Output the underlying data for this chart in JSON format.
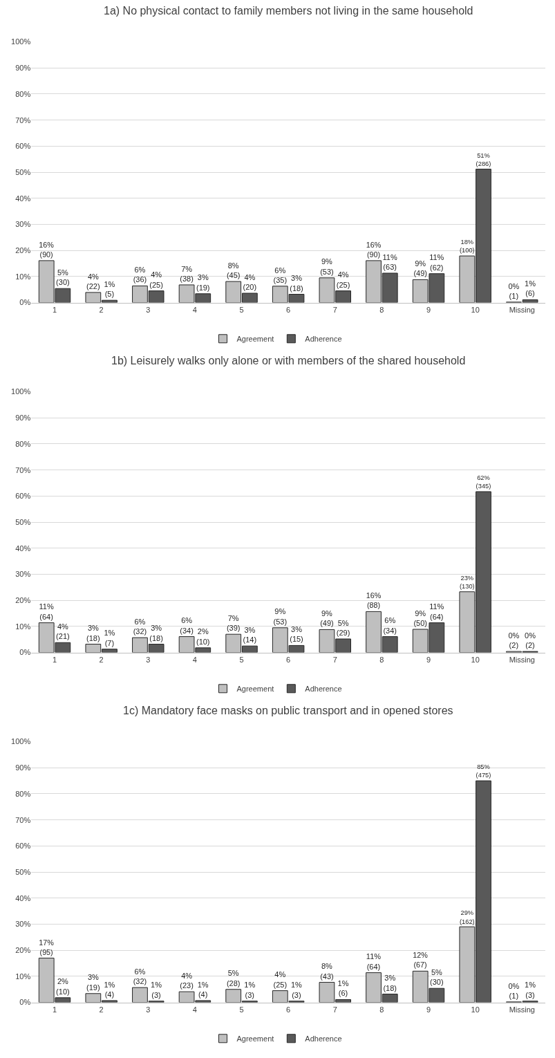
{
  "chart_data": [
    {
      "type": "bar",
      "title": "1a) No physical contact to family members not living in the same household",
      "categories": [
        "1",
        "2",
        "3",
        "4",
        "5",
        "6",
        "7",
        "8",
        "9",
        "10",
        "Missing"
      ],
      "ylim": [
        0,
        100
      ],
      "yticks": [
        {
          "value": 0,
          "label": "0%"
        },
        {
          "value": 10,
          "label": "10%"
        },
        {
          "value": 20,
          "label": "20%"
        },
        {
          "value": 30,
          "label": "30%"
        },
        {
          "value": 40,
          "label": "40%"
        },
        {
          "value": 50,
          "label": "50%"
        },
        {
          "value": 60,
          "label": "60%"
        },
        {
          "value": 70,
          "label": "70%"
        },
        {
          "value": 80,
          "label": "80%"
        },
        {
          "value": 90,
          "label": "90%"
        },
        {
          "value": 100,
          "label": "100%"
        }
      ],
      "grid": "y",
      "legend": "bottom",
      "series": [
        {
          "name": "Agreement",
          "color": "#bfbfbf",
          "values": [
            16.1,
            3.9,
            6.4,
            6.8,
            8.1,
            6.3,
            9.5,
            16.1,
            8.8,
            17.9,
            0.2
          ],
          "value_labels": [
            "16%\n(90)",
            "4%\n(22)",
            "6%\n(36)",
            "7%\n(38)",
            "8%\n(45)",
            "6%\n(35)",
            "9%\n(53)",
            "16%\n(90)",
            "9%\n(49)",
            "18%\n(100)",
            "0%\n(1)"
          ]
        },
        {
          "name": "Adherence",
          "color": "#595959",
          "values": [
            5.4,
            0.9,
            4.5,
            3.4,
            3.6,
            3.2,
            4.5,
            11.3,
            11.1,
            51.2,
            1.1
          ],
          "value_labels": [
            "5%\n(30)",
            "1%\n(5)",
            "4%\n(25)",
            "3%\n(19)",
            "4%\n(20)",
            "3%\n(18)",
            "4%\n(25)",
            "11%\n(63)",
            "11%\n(62)",
            "51%\n(286)",
            "1%\n(6)"
          ]
        }
      ]
    },
    {
      "type": "bar",
      "title": "1b) Leisurely walks only alone or with members of the shared household",
      "categories": [
        "1",
        "2",
        "3",
        "4",
        "5",
        "6",
        "7",
        "8",
        "9",
        "10",
        "Missing"
      ],
      "ylim": [
        0,
        100
      ],
      "yticks": [
        {
          "value": 0,
          "label": "0%"
        },
        {
          "value": 10,
          "label": "10%"
        },
        {
          "value": 20,
          "label": "20%"
        },
        {
          "value": 30,
          "label": "30%"
        },
        {
          "value": 40,
          "label": "40%"
        },
        {
          "value": 50,
          "label": "50%"
        },
        {
          "value": 60,
          "label": "60%"
        },
        {
          "value": 70,
          "label": "70%"
        },
        {
          "value": 80,
          "label": "80%"
        },
        {
          "value": 90,
          "label": "90%"
        },
        {
          "value": 100,
          "label": "100%"
        }
      ],
      "grid": "y",
      "legend": "bottom",
      "series": [
        {
          "name": "Agreement",
          "color": "#bfbfbf",
          "values": [
            11.4,
            3.2,
            5.7,
            6.1,
            7.0,
            9.5,
            8.8,
            15.7,
            8.9,
            23.3,
            0.4
          ],
          "value_labels": [
            "11%\n(64)",
            "3%\n(18)",
            "6%\n(32)",
            "6%\n(34)",
            "7%\n(39)",
            "9%\n(53)",
            "9%\n(49)",
            "16%\n(88)",
            "9%\n(50)",
            "23%\n(130)",
            "0%\n(2)"
          ]
        },
        {
          "name": "Adherence",
          "color": "#595959",
          "values": [
            3.8,
            1.3,
            3.2,
            1.8,
            2.5,
            2.7,
            5.2,
            6.1,
            11.4,
            61.7,
            0.4
          ],
          "value_labels": [
            "4%\n(21)",
            "1%\n(7)",
            "3%\n(18)",
            "2%\n(10)",
            "3%\n(14)",
            "3%\n(15)",
            "5%\n(29)",
            "6%\n(34)",
            "11%\n(64)",
            "62%\n(345)",
            "0%\n(2)"
          ]
        }
      ]
    },
    {
      "type": "bar",
      "title": "1c) Mandatory face masks on public transport and in opened stores",
      "categories": [
        "1",
        "2",
        "3",
        "4",
        "5",
        "6",
        "7",
        "8",
        "9",
        "10",
        "Missing"
      ],
      "ylim": [
        0,
        100
      ],
      "yticks": [
        {
          "value": 0,
          "label": "0%"
        },
        {
          "value": 10,
          "label": "10%"
        },
        {
          "value": 20,
          "label": "20%"
        },
        {
          "value": 30,
          "label": "30%"
        },
        {
          "value": 40,
          "label": "40%"
        },
        {
          "value": 50,
          "label": "50%"
        },
        {
          "value": 60,
          "label": "60%"
        },
        {
          "value": 70,
          "label": "70%"
        },
        {
          "value": 80,
          "label": "80%"
        },
        {
          "value": 90,
          "label": "90%"
        },
        {
          "value": 100,
          "label": "100%"
        }
      ],
      "grid": "y",
      "legend": "bottom",
      "series": [
        {
          "name": "Agreement",
          "color": "#bfbfbf",
          "values": [
            17.0,
            3.4,
            5.7,
            4.1,
            5.0,
            4.5,
            7.7,
            11.4,
            12.0,
            29.0,
            0.2
          ],
          "value_labels": [
            "17%\n(95)",
            "3%\n(19)",
            "6%\n(32)",
            "4%\n(23)",
            "5%\n(28)",
            "4%\n(25)",
            "8%\n(43)",
            "11%\n(64)",
            "12%\n(67)",
            "29%\n(162)",
            "0%\n(1)"
          ]
        },
        {
          "name": "Adherence",
          "color": "#595959",
          "values": [
            1.8,
            0.7,
            0.5,
            0.7,
            0.5,
            0.5,
            1.1,
            3.2,
            5.4,
            85.0,
            0.5
          ],
          "value_labels": [
            "2%\n(10)",
            "1%\n(4)",
            "1%\n(3)",
            "1%\n(4)",
            "1%\n(3)",
            "1%\n(3)",
            "1%\n(6)",
            "3%\n(18)",
            "5%\n(30)",
            "85%\n(475)",
            "1%\n(3)"
          ]
        }
      ]
    }
  ]
}
